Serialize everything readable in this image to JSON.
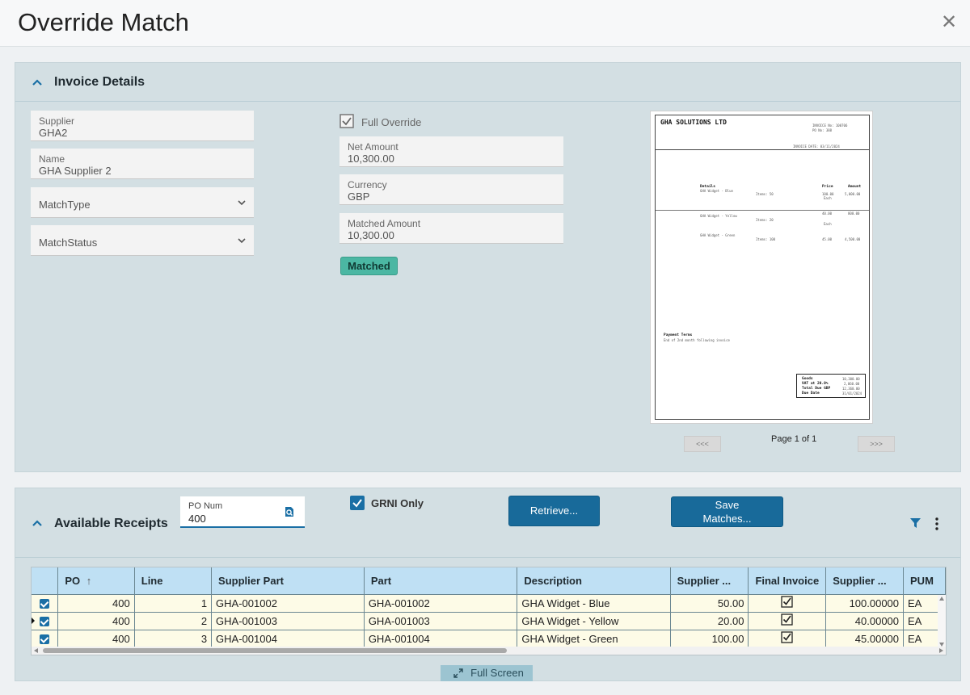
{
  "dialog": {
    "title": "Override Match"
  },
  "invoice_details": {
    "title": "Invoice Details",
    "supplier": {
      "label": "Supplier",
      "value": "GHA2"
    },
    "name": {
      "label": "Name",
      "value": "GHA Supplier 2"
    },
    "match_type": {
      "placeholder": "MatchType"
    },
    "match_status": {
      "placeholder": "MatchStatus"
    },
    "full_override": {
      "label": "Full Override",
      "checked": true
    },
    "net_amount": {
      "label": "Net Amount",
      "value": "10,300.00"
    },
    "currency": {
      "label": "Currency",
      "value": "GBP"
    },
    "matched_amount": {
      "label": "Matched Amount",
      "value": "10,300.00"
    },
    "status_badge": "Matched",
    "preview": {
      "company": "GHA SOLUTIONS LTD",
      "invoice_no": "INVOICE No: 100706",
      "po_no": "PO No: 388",
      "invoice_date": "INVOICE DATE: 03/11/2024",
      "col_details": "Details",
      "col_price": "Price",
      "col_amount": "Amount",
      "lines": [
        {
          "desc": "GHA Widget - Blue",
          "qty": "Items: 50",
          "price": "100.00",
          "unit": "Each",
          "amount": "5,000.00"
        },
        {
          "desc": "GHA Widget - Yellow",
          "qty": "Items: 20",
          "price": "40.00",
          "unit": "Each",
          "amount": "800.00"
        },
        {
          "desc": "GHA Widget - Green",
          "qty": "Items: 100",
          "price": "45.00",
          "unit": "",
          "amount": "4,500.00"
        }
      ],
      "payment_terms_title": "Payment Terms",
      "payment_terms": "End of 2nd month following invoice",
      "totals": [
        {
          "label": "Goods",
          "value": "10,300.00"
        },
        {
          "label": "VAT at 20.0%",
          "value": "2,060.00"
        },
        {
          "label": "Total Due GBP",
          "value": "12,360.00"
        },
        {
          "label": "Due Date",
          "value": "31/01/2024"
        }
      ]
    },
    "pager": {
      "prev": "<<<",
      "next": ">>>",
      "label": "Page 1 of 1"
    }
  },
  "receipts": {
    "title": "Available Receipts",
    "po_num": {
      "label": "PO Num",
      "value": "400"
    },
    "grni_only": {
      "label": "GRNI Only",
      "checked": true
    },
    "retrieve_label": "Retrieve...",
    "save_label_1": "Save",
    "save_label_2": "Matches...",
    "fullscreen_label": "Full Screen",
    "columns": [
      "PO",
      "Line",
      "Supplier Part",
      "Part",
      "Description",
      "Supplier ...",
      "Final Invoice",
      "Supplier ...",
      "PUM"
    ],
    "rows": [
      {
        "po": "400",
        "line": "1",
        "supplier_part": "GHA-001002",
        "part": "GHA-001002",
        "description": "GHA Widget - Blue",
        "supplier_qty": "50.00",
        "supplier_price": "100.00000",
        "pum": "EA"
      },
      {
        "po": "400",
        "line": "2",
        "supplier_part": "GHA-001003",
        "part": "GHA-001003",
        "description": "GHA Widget - Yellow",
        "supplier_qty": "20.00",
        "supplier_price": "40.00000",
        "pum": "EA"
      },
      {
        "po": "400",
        "line": "3",
        "supplier_part": "GHA-001004",
        "part": "GHA-001004",
        "description": "GHA Widget - Green",
        "supplier_qty": "100.00",
        "supplier_price": "45.00000",
        "pum": "EA"
      }
    ]
  },
  "colors": {
    "accent": "#186a9a",
    "matched": "#4bb7a3",
    "panel": "#d3dfe3",
    "header": "#bfe0f4"
  }
}
